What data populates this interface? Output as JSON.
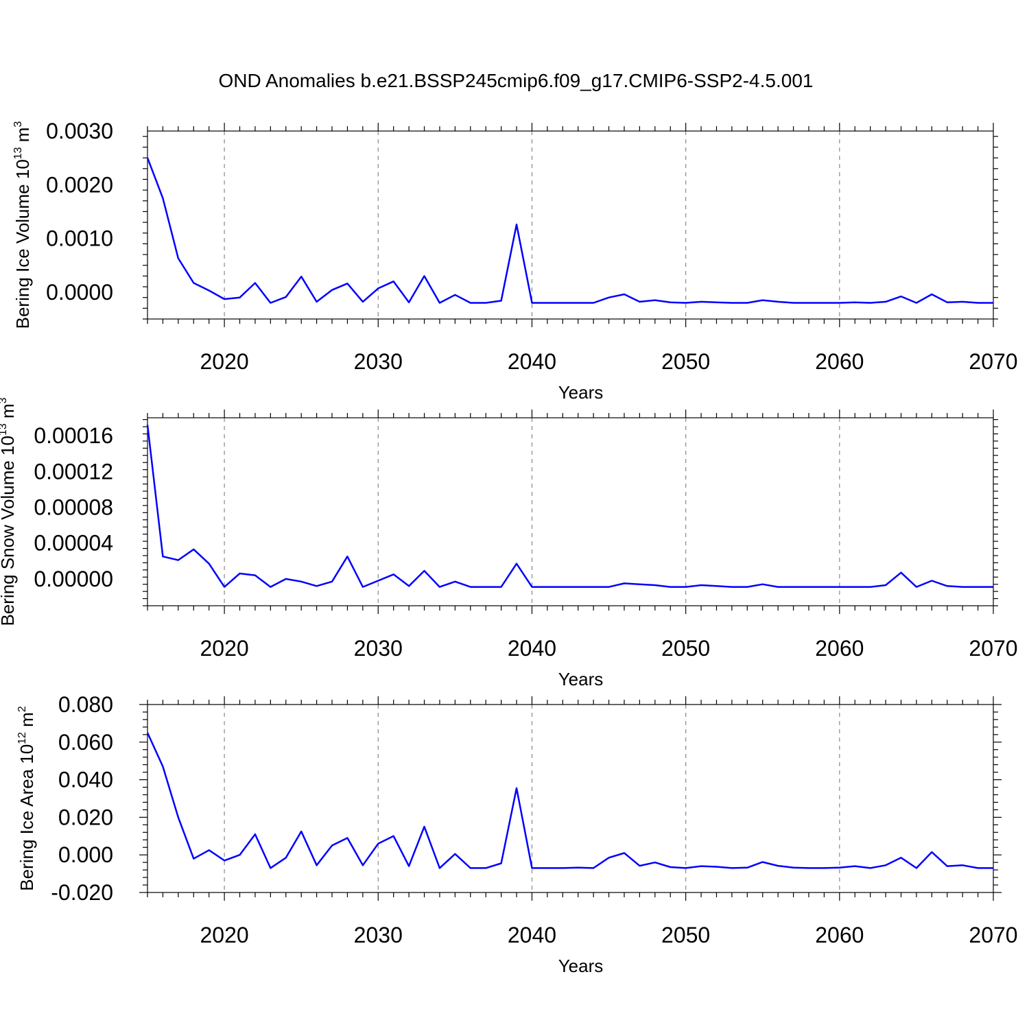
{
  "title": "OND Anomalies b.e21.BSSP245cmip6.f09_g17.CMIP6-SSP2-4.5.001",
  "colors": {
    "series": "#0000ff",
    "grid": "#888888",
    "axes": "#000000"
  },
  "chart_data": [
    {
      "type": "line",
      "xlabel": "Years",
      "ylabel": {
        "text": "Bering Ice Volume 10",
        "sup": "13",
        "unit": " m",
        "unit_sup": "3"
      },
      "xlim": [
        2015,
        2070
      ],
      "ylim": [
        -0.0005,
        0.003
      ],
      "xticks": [
        2020,
        2030,
        2040,
        2050,
        2060,
        2070
      ],
      "yticks": [
        0.0,
        0.001,
        0.002,
        0.003
      ],
      "ytick_labels": [
        "0.0000",
        "0.0010",
        "0.0020",
        "0.0030"
      ],
      "grid": "vertical dashed at major x ticks",
      "x": [
        2015,
        2016,
        2017,
        2018,
        2019,
        2020,
        2021,
        2022,
        2023,
        2024,
        2025,
        2026,
        2027,
        2028,
        2029,
        2030,
        2031,
        2032,
        2033,
        2034,
        2035,
        2036,
        2037,
        2038,
        2039,
        2040,
        2041,
        2042,
        2043,
        2044,
        2045,
        2046,
        2047,
        2048,
        2049,
        2050,
        2051,
        2052,
        2053,
        2054,
        2055,
        2056,
        2057,
        2058,
        2059,
        2060,
        2061,
        2062,
        2063,
        2064,
        2065,
        2066,
        2067,
        2068,
        2069,
        2070
      ],
      "series": [
        {
          "values": [
            0.0025,
            0.00175,
            0.00063,
            0.00017,
            3e-05,
            -0.00013,
            -0.0001,
            0.00017,
            -0.0002,
            -9e-05,
            0.00029,
            -0.00018,
            4e-05,
            0.00016,
            -0.00018,
            7e-05,
            0.0002,
            -0.00019,
            0.0003,
            -0.0002,
            -5e-05,
            -0.0002,
            -0.0002,
            -0.00016,
            0.00126,
            -0.0002,
            -0.0002,
            -0.0002,
            -0.0002,
            -0.0002,
            -0.0001,
            -4e-05,
            -0.00018,
            -0.00015,
            -0.00019,
            -0.0002,
            -0.00018,
            -0.00019,
            -0.0002,
            -0.0002,
            -0.00015,
            -0.00018,
            -0.0002,
            -0.0002,
            -0.0002,
            -0.0002,
            -0.00019,
            -0.0002,
            -0.00018,
            -8e-05,
            -0.0002,
            -4e-05,
            -0.00019,
            -0.00018,
            -0.0002,
            -0.0002
          ]
        }
      ]
    },
    {
      "type": "line",
      "xlabel": "Years",
      "ylabel": {
        "text": "Bering Snow Volume 10",
        "sup": "13",
        "unit": " m",
        "unit_sup": "3"
      },
      "xlim": [
        2015,
        2070
      ],
      "ylim": [
        -3e-05,
        0.00018
      ],
      "xticks": [
        2020,
        2030,
        2040,
        2050,
        2060,
        2070
      ],
      "yticks": [
        0.0,
        4e-05,
        8e-05,
        0.00012,
        0.00016
      ],
      "ytick_labels": [
        "0.00000",
        "0.00004",
        "0.00008",
        "0.00012",
        "0.00016"
      ],
      "grid": "vertical dashed at major x ticks",
      "x": [
        2015,
        2016,
        2017,
        2018,
        2019,
        2020,
        2021,
        2022,
        2023,
        2024,
        2025,
        2026,
        2027,
        2028,
        2029,
        2030,
        2031,
        2032,
        2033,
        2034,
        2035,
        2036,
        2037,
        2038,
        2039,
        2040,
        2041,
        2042,
        2043,
        2044,
        2045,
        2046,
        2047,
        2048,
        2049,
        2050,
        2051,
        2052,
        2053,
        2054,
        2055,
        2056,
        2057,
        2058,
        2059,
        2060,
        2061,
        2062,
        2063,
        2064,
        2065,
        2066,
        2067,
        2068,
        2069,
        2070
      ],
      "series": [
        {
          "values": [
            0.000172,
            2.5e-05,
            2.1e-05,
            3.3e-05,
            1.7e-05,
            -9e-06,
            6e-06,
            4e-06,
            -9e-06,
            0.0,
            -3e-06,
            -8e-06,
            -3e-06,
            2.5e-05,
            -9e-06,
            -2e-06,
            5e-06,
            -8e-06,
            9e-06,
            -9e-06,
            -3e-06,
            -9e-06,
            -9e-06,
            -9e-06,
            1.7e-05,
            -9e-06,
            -9e-06,
            -9e-06,
            -9e-06,
            -9e-06,
            -9e-06,
            -5e-06,
            -6e-06,
            -7e-06,
            -9e-06,
            -9e-06,
            -7e-06,
            -8e-06,
            -9e-06,
            -9e-06,
            -6e-06,
            -9e-06,
            -9e-06,
            -9e-06,
            -9e-06,
            -9e-06,
            -9e-06,
            -9e-06,
            -7e-06,
            7e-06,
            -9e-06,
            -2e-06,
            -8e-06,
            -9e-06,
            -9e-06,
            -9e-06
          ]
        }
      ]
    },
    {
      "type": "line",
      "xlabel": "Years",
      "ylabel": {
        "text": "Bering Ice Area 10",
        "sup": "12",
        "unit": " m",
        "unit_sup": "2"
      },
      "xlim": [
        2015,
        2070
      ],
      "ylim": [
        -0.02,
        0.08
      ],
      "xticks": [
        2020,
        2030,
        2040,
        2050,
        2060,
        2070
      ],
      "yticks": [
        -0.02,
        0.0,
        0.02,
        0.04,
        0.06,
        0.08
      ],
      "ytick_labels": [
        "-0.020",
        "0.000",
        "0.020",
        "0.040",
        "0.060",
        "0.080"
      ],
      "grid": "vertical dashed at major x ticks",
      "x": [
        2015,
        2016,
        2017,
        2018,
        2019,
        2020,
        2021,
        2022,
        2023,
        2024,
        2025,
        2026,
        2027,
        2028,
        2029,
        2030,
        2031,
        2032,
        2033,
        2034,
        2035,
        2036,
        2037,
        2038,
        2039,
        2040,
        2041,
        2042,
        2043,
        2044,
        2045,
        2046,
        2047,
        2048,
        2049,
        2050,
        2051,
        2052,
        2053,
        2054,
        2055,
        2056,
        2057,
        2058,
        2059,
        2060,
        2061,
        2062,
        2063,
        2064,
        2065,
        2066,
        2067,
        2068,
        2069,
        2070
      ],
      "series": [
        {
          "values": [
            0.065,
            0.047,
            0.02,
            -0.002,
            0.0025,
            -0.003,
            0.0,
            0.011,
            -0.007,
            -0.0015,
            0.0125,
            -0.0055,
            0.005,
            0.009,
            -0.0055,
            0.006,
            0.01,
            -0.006,
            0.015,
            -0.007,
            0.0005,
            -0.007,
            -0.007,
            -0.0045,
            0.0355,
            -0.007,
            -0.007,
            -0.007,
            -0.0068,
            -0.007,
            -0.0015,
            0.001,
            -0.0058,
            -0.004,
            -0.0065,
            -0.007,
            -0.006,
            -0.0063,
            -0.007,
            -0.0068,
            -0.0038,
            -0.0058,
            -0.0068,
            -0.007,
            -0.007,
            -0.0068,
            -0.006,
            -0.007,
            -0.0055,
            -0.0015,
            -0.007,
            0.0015,
            -0.006,
            -0.0055,
            -0.007,
            -0.007
          ]
        }
      ]
    }
  ]
}
